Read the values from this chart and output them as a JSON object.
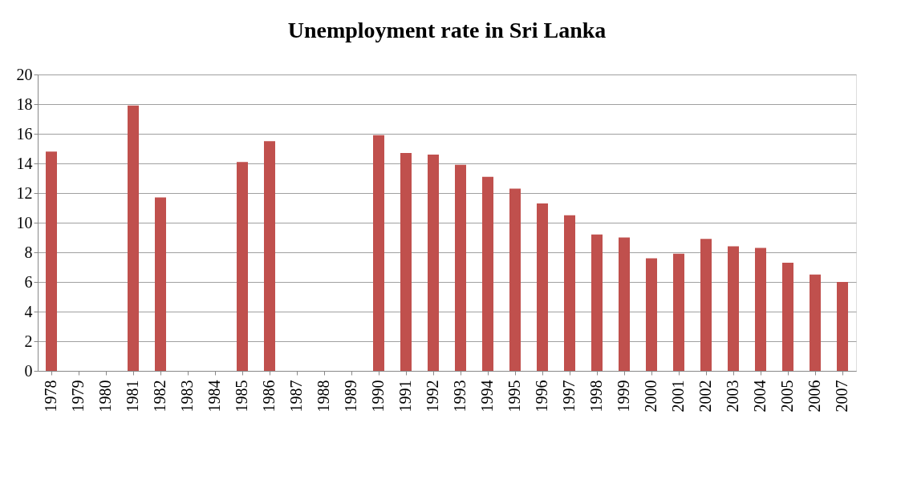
{
  "chart_data": {
    "type": "bar",
    "title": "Unemployment rate in Sri Lanka",
    "categories": [
      "1978",
      "1979",
      "1980",
      "1981",
      "1982",
      "1983",
      "1984",
      "1985",
      "1986",
      "1987",
      "1988",
      "1989",
      "1990",
      "1991",
      "1992",
      "1993",
      "1994",
      "1995",
      "1996",
      "1997",
      "1998",
      "1999",
      "2000",
      "2001",
      "2002",
      "2003",
      "2004",
      "2005",
      "2006",
      "2007"
    ],
    "values": [
      14.8,
      null,
      null,
      17.9,
      11.7,
      null,
      null,
      14.1,
      15.5,
      null,
      null,
      null,
      15.9,
      14.7,
      14.6,
      13.9,
      13.1,
      12.3,
      11.3,
      10.5,
      9.2,
      9.0,
      7.6,
      7.9,
      8.9,
      8.4,
      8.3,
      7.3,
      6.5,
      6.0
    ],
    "color": "#c0504d",
    "ylim": [
      0,
      20
    ],
    "yticks": [
      0,
      2,
      4,
      6,
      8,
      10,
      12,
      14,
      16,
      18,
      20
    ],
    "grid": "y"
  }
}
